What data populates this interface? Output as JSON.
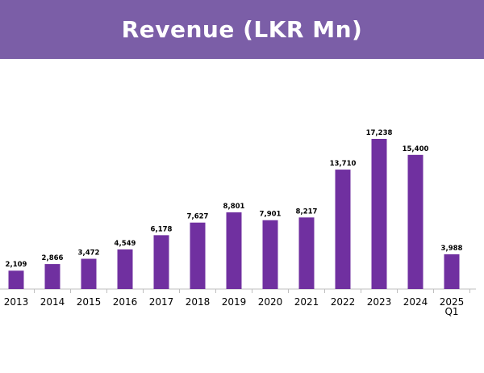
{
  "header": {
    "title": "Revenue (LKR Mn)"
  },
  "colors": {
    "header_bg": "#7b5ea7",
    "bar": "#7030a0",
    "axis": "#bfbfbf",
    "text": "#000000"
  },
  "chart_data": {
    "type": "bar",
    "title": "Revenue (LKR Mn)",
    "xlabel": "",
    "ylabel": "",
    "ylim": [
      0,
      17238
    ],
    "grid": false,
    "legend": "none",
    "categories": [
      "2013",
      "2014",
      "2015",
      "2016",
      "2017",
      "2018",
      "2019",
      "2020",
      "2021",
      "2022",
      "2023",
      "2024",
      "2025 Q1"
    ],
    "values": [
      2109,
      2866,
      3472,
      4549,
      6178,
      7627,
      8801,
      7901,
      8217,
      13710,
      17238,
      15400,
      3988
    ],
    "value_labels": [
      "2,109",
      "2,866",
      "3,472",
      "4,549",
      "6,178",
      "7,627",
      "8,801",
      "7,901",
      "8,217",
      "13,710",
      "17,238",
      "15,400",
      "3,988"
    ]
  }
}
